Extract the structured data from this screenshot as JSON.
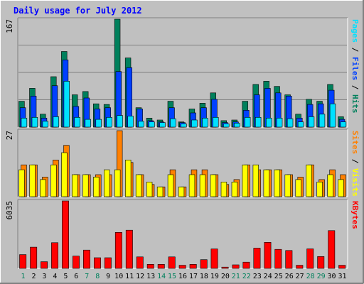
{
  "colors": {
    "background": "#c0c0c0",
    "plot_bg": "#c0c0c0",
    "grid": "#808080",
    "title": "#0000ff",
    "hits": "#00805c",
    "files": "#0040ff",
    "pages": "#00e0ff",
    "visits": "#ffff00",
    "sites": "#ff8000",
    "kbytes": "#ff0000",
    "weekday_label": "#000000",
    "weekend_label": "#00805c"
  },
  "chart_data": {
    "type": "bar",
    "title": "Daily usage for July 2012",
    "categories": [
      "1",
      "2",
      "3",
      "4",
      "5",
      "6",
      "7",
      "8",
      "9",
      "10",
      "11",
      "12",
      "13",
      "14",
      "15",
      "16",
      "17",
      "18",
      "19",
      "20",
      "21",
      "22",
      "23",
      "24",
      "25",
      "26",
      "27",
      "28",
      "29",
      "30",
      "31"
    ],
    "weekend_days": [
      "1",
      "7",
      "8",
      "14",
      "15",
      "21",
      "22",
      "28",
      "29"
    ],
    "panels": [
      {
        "name": "hits-files-pages",
        "max_label": "167",
        "legend": [
          {
            "text": "Pages",
            "color": "#00e0ff"
          },
          {
            "text": " / ",
            "color": "#000000"
          },
          {
            "text": "Files",
            "color": "#0040ff"
          },
          {
            "text": " / ",
            "color": "#000000"
          },
          {
            "text": "Hits",
            "color": "#00805c"
          }
        ],
        "series": [
          {
            "name": "Hits",
            "values": [
              40,
              60,
              20,
              78,
              117,
              50,
              55,
              36,
              35,
              167,
              107,
              30,
              14,
              11,
              40,
              8,
              28,
              37,
              53,
              10,
              11,
              40,
              66,
              71,
              63,
              50,
              20,
              43,
              40,
              66,
              16
            ]
          },
          {
            "name": "Files",
            "values": [
              30,
              48,
              14,
              64,
              104,
              32,
              45,
              28,
              30,
              86,
              92,
              28,
              10,
              8,
              30,
              7,
              22,
              30,
              43,
              7,
              8,
              26,
              50,
              60,
              53,
              48,
              14,
              35,
              36,
              57,
              12
            ]
          },
          {
            "name": "Pages",
            "values": [
              14,
              15,
              9,
              16,
              71,
              15,
              12,
              12,
              15,
              18,
              17,
              9,
              8,
              7,
              13,
              5,
              11,
              14,
              15,
              5,
              6,
              15,
              15,
              14,
              14,
              13,
              8,
              16,
              20,
              36,
              8
            ]
          }
        ],
        "ylim": [
          0,
          167
        ]
      },
      {
        "name": "visits-sites",
        "max_label": "27",
        "legend": [
          {
            "text": "Sites",
            "color": "#ff8000"
          },
          {
            "text": " / ",
            "color": "#000000"
          },
          {
            "text": "Visits",
            "color": "#ffff00"
          }
        ],
        "series": [
          {
            "name": "Visits",
            "values": [
              11,
              13,
              7,
              13,
              18,
              9,
              9,
              8,
              11,
              11,
              15,
              9,
              6,
              4,
              9,
              4,
              9,
              9,
              9,
              6,
              6,
              13,
              13,
              11,
              11,
              9,
              7,
              13,
              6,
              9,
              7
            ]
          },
          {
            "name": "Sites",
            "values": [
              13,
              13,
              8,
              15,
              21,
              9,
              9,
              9,
              9,
              27,
              14,
              9,
              5,
              4,
              11,
              4,
              11,
              11,
              9,
              5,
              7,
              13,
              11,
              11,
              11,
              9,
              8,
              13,
              7,
              11,
              9
            ]
          }
        ],
        "ylim": [
          0,
          27
        ]
      },
      {
        "name": "kbytes",
        "max_label": "6035",
        "legend": [
          {
            "text": "KBytes",
            "color": "#ff0000"
          }
        ],
        "series": [
          {
            "name": "KBytes",
            "values": [
              1230,
              1900,
              600,
              2300,
              6035,
              1100,
              1640,
              950,
              950,
              3220,
              3420,
              1030,
              360,
              360,
              1030,
              280,
              360,
              780,
              1740,
              115,
              320,
              560,
              1810,
              2330,
              1700,
              1600,
              280,
              1750,
              1060,
              3380,
              280
            ]
          }
        ],
        "ylim": [
          0,
          6035
        ]
      }
    ]
  }
}
